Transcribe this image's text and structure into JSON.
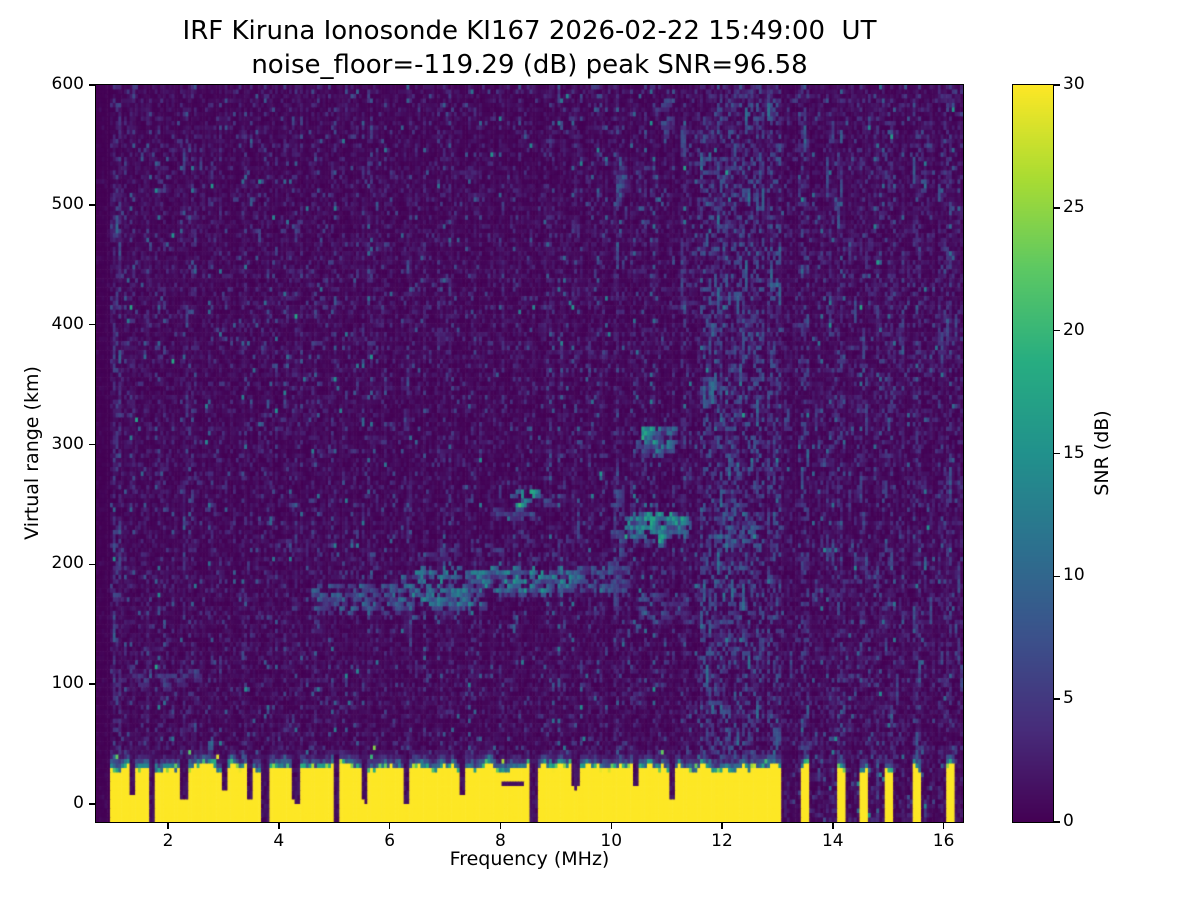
{
  "figure": {
    "background": "#ffffff",
    "text_color": "#000000"
  },
  "chart_data": {
    "type": "heatmap",
    "title_line1": "IRF Kiruna Ionosonde KI167 2026-02-22 15:49:00  UT",
    "title_line2": "noise_floor=-119.29 (dB) peak SNR=96.58",
    "station": "IRF Kiruna Ionosonde KI167",
    "timestamp_ut": "2026-02-22 15:49:00",
    "noise_floor_db": -119.29,
    "peak_snr_db": 96.58,
    "xlabel": "Frequency (MHz)",
    "ylabel": "Virtual range (km)",
    "colorbar_label": "SNR (dB)",
    "colormap": "viridis",
    "grid_lines": false,
    "legend": "none",
    "x_range": [
      0.7,
      16.35
    ],
    "y_range": [
      -15,
      600
    ],
    "snr_range": [
      0,
      30
    ],
    "x_ticks": [
      2,
      4,
      6,
      8,
      10,
      12,
      14,
      16
    ],
    "y_ticks": [
      0,
      100,
      200,
      300,
      400,
      500,
      600
    ],
    "colorbar_ticks": [
      0,
      5,
      10,
      15,
      20,
      25,
      30
    ],
    "viridis_stops": [
      "#440154",
      "#472c7a",
      "#3b518b",
      "#2c718e",
      "#21918c",
      "#27ad81",
      "#5cc863",
      "#aadc32",
      "#fde725"
    ],
    "grid": {
      "cols": 310,
      "rows": 164
    },
    "noise": {
      "base_mean_db": 1.1,
      "speckle_prob": 0.055,
      "speckle_max_db": 8,
      "rare_prob": 0.004,
      "rare_max_db": 14
    },
    "data_freq_min": 0.95,
    "ground_band": {
      "freq_min": 0.95,
      "freq_max": 11.62,
      "top_km_mean": 30,
      "top_km_jitter": 8,
      "snr_db": 30,
      "notch_freqs": [
        1.35,
        1.72,
        2.3,
        3.02,
        3.48,
        3.76,
        4.3,
        5.05,
        5.55,
        6.3,
        7.32,
        8.6,
        9.35,
        10.45,
        11.1
      ],
      "dropouts": [
        {
          "f0": 8.05,
          "f1": 8.38,
          "r": 18
        }
      ]
    },
    "interference_stripes": [
      {
        "f": 1.08,
        "amp": 5,
        "density": 0.45,
        "band": false
      },
      {
        "f": 2.32,
        "amp": 2.4,
        "density": 0.28,
        "band": false
      },
      {
        "f": 4.32,
        "amp": 2.2,
        "density": 0.24,
        "band": false
      },
      {
        "f": 6.34,
        "amp": 2.2,
        "density": 0.24,
        "band": false
      },
      {
        "f": 9.38,
        "amp": 2.4,
        "density": 0.24,
        "band": false
      },
      {
        "f": 10.08,
        "amp": 3.2,
        "density": 0.3,
        "band": false
      },
      {
        "f": 11.33,
        "amp": 3.0,
        "density": 0.3,
        "band": false
      },
      {
        "f": 11.68,
        "amp": 6,
        "density": 0.4,
        "band": true
      },
      {
        "f": 11.8,
        "amp": 6,
        "density": 0.4,
        "band": true
      },
      {
        "f": 11.93,
        "amp": 6,
        "density": 0.42,
        "band": true
      },
      {
        "f": 12.06,
        "amp": 6,
        "density": 0.4,
        "band": true
      },
      {
        "f": 12.19,
        "amp": 6,
        "density": 0.42,
        "band": true
      },
      {
        "f": 12.32,
        "amp": 6,
        "density": 0.4,
        "band": true
      },
      {
        "f": 12.45,
        "amp": 6,
        "density": 0.42,
        "band": true
      },
      {
        "f": 12.58,
        "amp": 6,
        "density": 0.4,
        "band": true
      },
      {
        "f": 12.72,
        "amp": 6,
        "density": 0.4,
        "band": true
      },
      {
        "f": 12.86,
        "amp": 6,
        "density": 0.4,
        "band": true
      },
      {
        "f": 13.0,
        "amp": 6,
        "density": 0.4,
        "band": true
      },
      {
        "f": 13.2,
        "amp": 2.6,
        "density": 0.26,
        "band": false
      },
      {
        "f": 13.5,
        "amp": 5,
        "density": 0.42,
        "band": true,
        "w": 0.1
      },
      {
        "f": 13.72,
        "amp": 2.4,
        "density": 0.22,
        "band": false
      },
      {
        "f": 13.95,
        "amp": 2.8,
        "density": 0.26,
        "band": false
      },
      {
        "f": 14.13,
        "amp": 4,
        "density": 0.34,
        "band": true
      },
      {
        "f": 14.35,
        "amp": 2.4,
        "density": 0.22,
        "band": false
      },
      {
        "f": 14.57,
        "amp": 3.4,
        "density": 0.3,
        "band": true
      },
      {
        "f": 14.78,
        "amp": 2.4,
        "density": 0.22,
        "band": false
      },
      {
        "f": 15.0,
        "amp": 4,
        "density": 0.34,
        "band": true
      },
      {
        "f": 15.22,
        "amp": 2.4,
        "density": 0.22,
        "band": false
      },
      {
        "f": 15.52,
        "amp": 4,
        "density": 0.34,
        "band": true
      },
      {
        "f": 15.75,
        "amp": 2.4,
        "density": 0.22,
        "band": false
      },
      {
        "f": 15.95,
        "amp": 2.8,
        "density": 0.26,
        "band": false
      },
      {
        "f": 16.1,
        "amp": 4,
        "density": 0.34,
        "band": true
      },
      {
        "f": 16.27,
        "amp": 2.4,
        "density": 0.22,
        "band": false
      }
    ],
    "echo_clusters": [
      {
        "f0": 4.55,
        "f1": 6.2,
        "r0": 160,
        "r1": 182,
        "amp": 9,
        "n": 70
      },
      {
        "f0": 6.2,
        "f1": 7.65,
        "r0": 165,
        "r1": 196,
        "amp": 12,
        "n": 95
      },
      {
        "f0": 7.65,
        "f1": 9.4,
        "r0": 176,
        "r1": 197,
        "amp": 13,
        "n": 95
      },
      {
        "f0": 8.25,
        "f1": 8.62,
        "r0": 248,
        "r1": 262,
        "amp": 17,
        "n": 14
      },
      {
        "f0": 7.9,
        "f1": 9.1,
        "r0": 238,
        "r1": 258,
        "amp": 7,
        "n": 22
      },
      {
        "f0": 10.25,
        "f1": 11.35,
        "r0": 220,
        "r1": 243,
        "amp": 15,
        "n": 95
      },
      {
        "f0": 10.4,
        "f1": 11.15,
        "r0": 292,
        "r1": 315,
        "amp": 11,
        "n": 34
      },
      {
        "f0": 10.55,
        "f1": 10.78,
        "r0": 299,
        "r1": 312,
        "amp": 16,
        "n": 10
      },
      {
        "f0": 11.85,
        "f1": 12.55,
        "r0": 215,
        "r1": 242,
        "amp": 9,
        "n": 24
      },
      {
        "f0": 1.1,
        "f1": 2.6,
        "r0": 100,
        "r1": 110,
        "amp": 6,
        "n": 26
      },
      {
        "f0": 9.35,
        "f1": 10.3,
        "r0": 178,
        "r1": 200,
        "amp": 8,
        "n": 42
      },
      {
        "f0": 10.02,
        "f1": 10.18,
        "r0": 168,
        "r1": 262,
        "amp": 7,
        "n": 26
      },
      {
        "f0": 10.5,
        "f1": 11.55,
        "r0": 152,
        "r1": 176,
        "amp": 7,
        "n": 30
      },
      {
        "f0": 6.4,
        "f1": 9.2,
        "r0": 203,
        "r1": 222,
        "amp": 5,
        "n": 26
      },
      {
        "f0": 10.08,
        "f1": 10.2,
        "r0": 475,
        "r1": 535,
        "amp": 8,
        "n": 20
      },
      {
        "f0": 10.9,
        "f1": 11.05,
        "r0": 555,
        "r1": 590,
        "amp": 7,
        "n": 12
      }
    ]
  }
}
